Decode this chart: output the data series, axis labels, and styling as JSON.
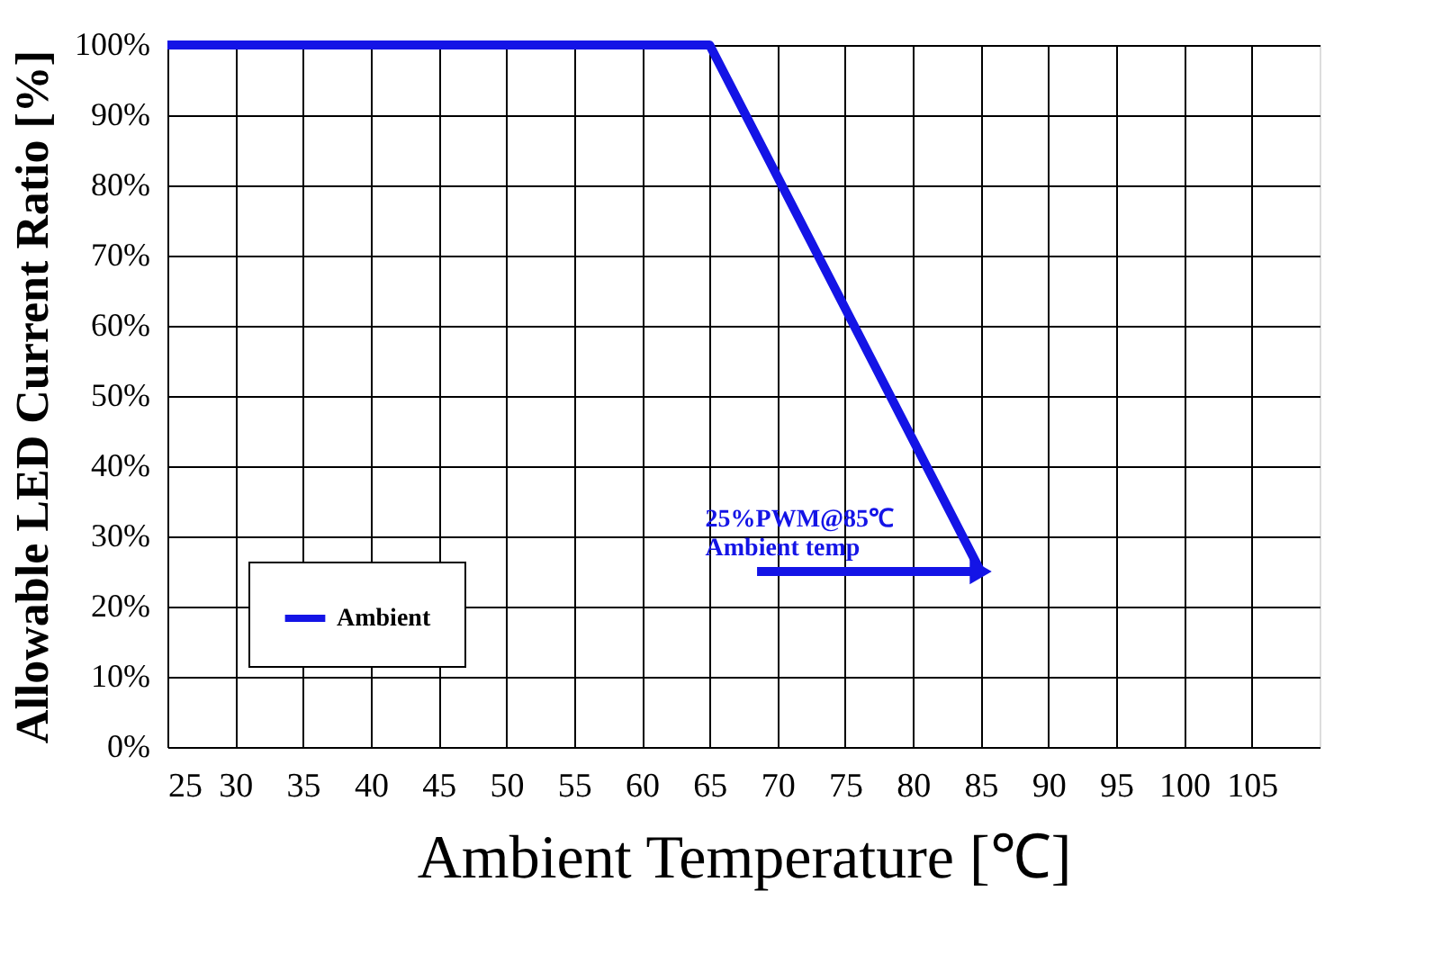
{
  "chart_data": {
    "type": "line",
    "xlabel": "Ambient Temperature [℃]",
    "ylabel": "Allowable LED Current Ratio [%]",
    "x": [
      25,
      65,
      85
    ],
    "series": [
      {
        "name": "Ambient",
        "color": "#1414e6",
        "values": [
          100,
          100,
          25
        ]
      }
    ],
    "xlim": [
      25,
      110
    ],
    "xticks": [
      25,
      30,
      35,
      40,
      45,
      50,
      55,
      60,
      65,
      70,
      75,
      80,
      85,
      90,
      95,
      100,
      105
    ],
    "ylim": [
      0,
      100
    ],
    "yticks": [
      {
        "value": 0,
        "label": "0%"
      },
      {
        "value": 10,
        "label": "10%"
      },
      {
        "value": 20,
        "label": "20%"
      },
      {
        "value": 30,
        "label": "30%"
      },
      {
        "value": 40,
        "label": "40%"
      },
      {
        "value": 50,
        "label": "50%"
      },
      {
        "value": 60,
        "label": "60%"
      },
      {
        "value": 70,
        "label": "70%"
      },
      {
        "value": 80,
        "label": "80%"
      },
      {
        "value": 90,
        "label": "90%"
      },
      {
        "value": 100,
        "label": "100%"
      }
    ],
    "annotations": [
      {
        "text": "25%PWM@85℃\nAmbient temp",
        "x": 85,
        "y": 25
      }
    ],
    "grid": true,
    "legend": "bottom left",
    "marker": "none",
    "line_style": "solid"
  }
}
